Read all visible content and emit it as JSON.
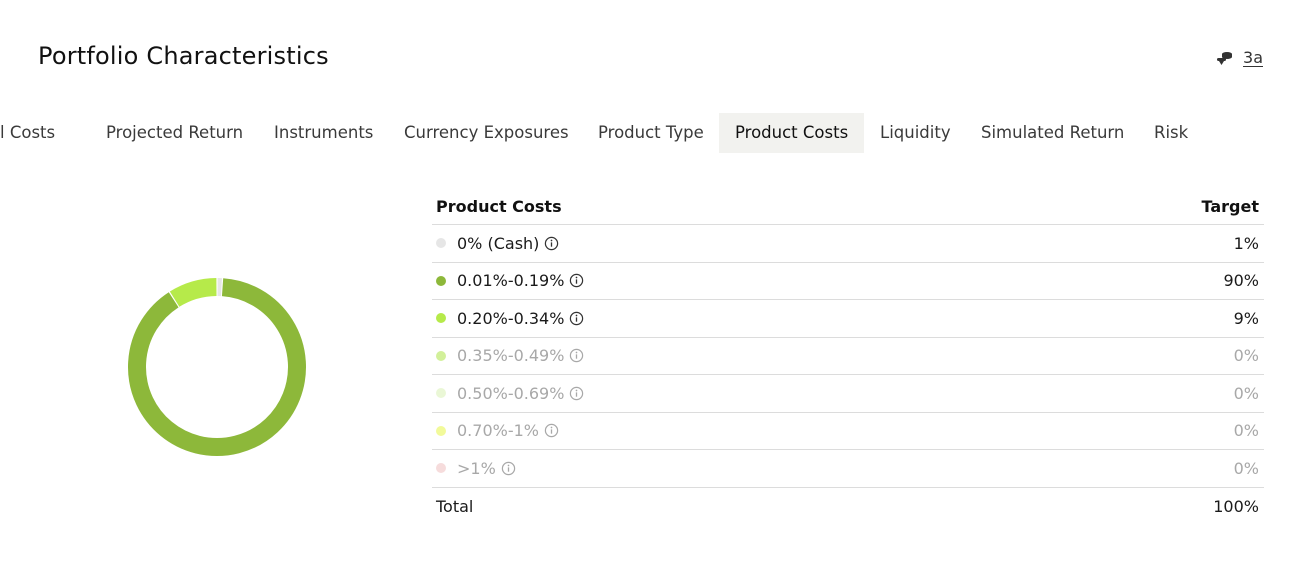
{
  "header": {
    "title": "Portfolio Characteristics",
    "link_text": "3a",
    "link_icon": "coins-icon"
  },
  "tabs": [
    {
      "label": "l Costs",
      "active": false
    },
    {
      "label": "Projected Return",
      "active": false
    },
    {
      "label": "Instruments",
      "active": false
    },
    {
      "label": "Currency Exposures",
      "active": false
    },
    {
      "label": "Product Type",
      "active": false
    },
    {
      "label": "Product Costs",
      "active": true
    },
    {
      "label": "Liquidity",
      "active": false
    },
    {
      "label": "Simulated Return",
      "active": false
    },
    {
      "label": "Risk",
      "active": false
    }
  ],
  "table": {
    "col_label": "Product Costs",
    "col_value": "Target",
    "rows": [
      {
        "label": "0% (Cash)",
        "value": "1%",
        "color": "#e6e6e6",
        "muted": false
      },
      {
        "label": "0.01%-0.19%",
        "value": "90%",
        "color": "#8db83a",
        "muted": false
      },
      {
        "label": "0.20%-0.34%",
        "value": "9%",
        "color": "#b6ea4a",
        "muted": false
      },
      {
        "label": "0.35%-0.49%",
        "value": "0%",
        "color": "#d2f09a",
        "muted": true
      },
      {
        "label": "0.50%-0.69%",
        "value": "0%",
        "color": "#eaf7d6",
        "muted": true
      },
      {
        "label": "0.70%-1%",
        "value": "0%",
        "color": "#f2fa9a",
        "muted": true
      },
      {
        "label": ">1%",
        "value": "0%",
        "color": "#f6dcdc",
        "muted": true
      }
    ],
    "total_label": "Total",
    "total_value": "100%"
  },
  "chart_data": {
    "type": "pie",
    "donut": true,
    "categories": [
      "0% (Cash)",
      "0.01%-0.19%",
      "0.20%-0.34%",
      "0.35%-0.49%",
      "0.50%-0.69%",
      "0.70%-1%",
      ">1%"
    ],
    "values": [
      1,
      90,
      9,
      0,
      0,
      0,
      0
    ],
    "colors": [
      "#e6e6e6",
      "#8db83a",
      "#b6ea4a",
      "#d2f09a",
      "#eaf7d6",
      "#f2fa9a",
      "#f6dcdc"
    ]
  }
}
